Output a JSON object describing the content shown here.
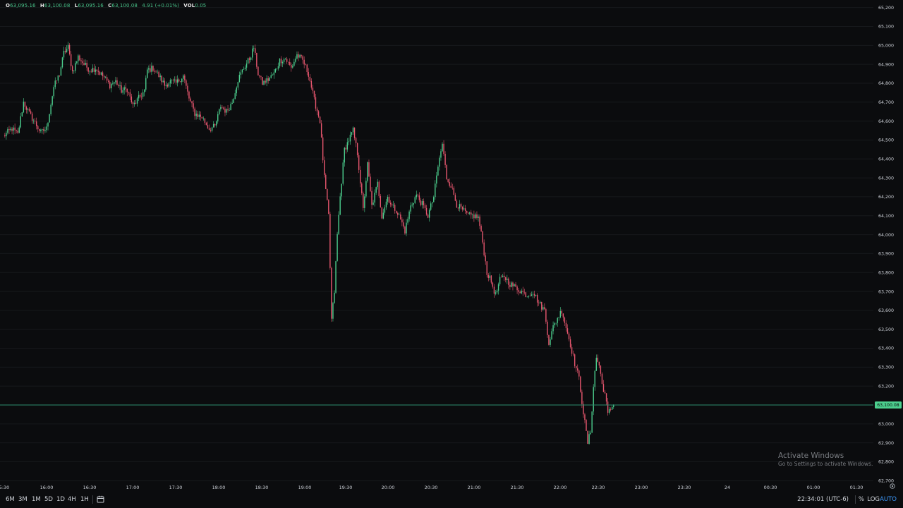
{
  "legend": {
    "o_key": "O",
    "o_val": "63,095.16",
    "h_key": "H",
    "h_val": "63,100.08",
    "l_key": "L",
    "l_val": "63,095.16",
    "c_key": "C",
    "c_val": "63,100.08",
    "change": "4.91 (+0.01%)",
    "vol_key": "VOL",
    "vol_val": "0.05"
  },
  "colors": {
    "up": "#26a69a",
    "up_bright": "#4ccf8e",
    "down": "#e9576f",
    "background": "#0b0c0e",
    "grid": "#17191c",
    "price_line": "#2e8b6d",
    "price_tag": "#4ccf8e"
  },
  "current_price_label": "63,100.08",
  "toolbar": {
    "timeframes": [
      "6M",
      "3M",
      "1M",
      "5D",
      "1D",
      "4H",
      "1H"
    ],
    "calendar_icon": "calendar-range-icon",
    "clock": "22:34:01 (UTC-6)",
    "percent": "%",
    "log": "LOG",
    "auto": "AUTO",
    "settings_icon": "gear-icon"
  },
  "watermark": {
    "line1": "Activate Windows",
    "line2": "Go to Settings to activate Windows."
  },
  "chart_data": {
    "type": "candlestick",
    "y_ticks": [
      "65,200",
      "65,100",
      "65,000",
      "64,900",
      "64,800",
      "64,700",
      "64,600",
      "64,500",
      "64,400",
      "64,300",
      "64,200",
      "64,100",
      "64,000",
      "63,900",
      "63,800",
      "63,700",
      "63,600",
      "63,500",
      "63,400",
      "63,300",
      "63,200",
      "63,100",
      "63,000",
      "62,900",
      "62,800",
      "62,700"
    ],
    "ylim": [
      62690,
      65210
    ],
    "x_ticks": [
      "5:30",
      "16:00",
      "16:30",
      "17:00",
      "17:30",
      "18:00",
      "18:30",
      "19:00",
      "19:30",
      "20:00",
      "20:30",
      "21:00",
      "21:30",
      "22:00",
      "22:30",
      "23:00",
      "23:30",
      "24",
      "00:30",
      "01:00",
      "01:30"
    ],
    "xlim": [
      "15:30",
      "01:48"
    ],
    "current_price": 63100.08,
    "candle_interval_minutes": 1,
    "price_path": [
      [
        "15:30",
        64520
      ],
      [
        "15:36",
        64560
      ],
      [
        "15:40",
        64530
      ],
      [
        "15:44",
        64700
      ],
      [
        "15:48",
        64640
      ],
      [
        "15:52",
        64590
      ],
      [
        "15:56",
        64540
      ],
      [
        "16:00",
        64560
      ],
      [
        "16:05",
        64780
      ],
      [
        "16:09",
        64850
      ],
      [
        "16:12",
        64960
      ],
      [
        "16:15",
        64990
      ],
      [
        "16:18",
        64860
      ],
      [
        "16:22",
        64940
      ],
      [
        "16:26",
        64900
      ],
      [
        "16:30",
        64870
      ],
      [
        "16:34",
        64880
      ],
      [
        "16:40",
        64830
      ],
      [
        "16:44",
        64790
      ],
      [
        "16:48",
        64810
      ],
      [
        "16:52",
        64760
      ],
      [
        "16:56",
        64770
      ],
      [
        "17:00",
        64680
      ],
      [
        "17:04",
        64720
      ],
      [
        "17:08",
        64760
      ],
      [
        "17:10",
        64870
      ],
      [
        "17:14",
        64880
      ],
      [
        "17:18",
        64840
      ],
      [
        "17:22",
        64790
      ],
      [
        "17:26",
        64810
      ],
      [
        "17:30",
        64800
      ],
      [
        "17:35",
        64840
      ],
      [
        "17:39",
        64720
      ],
      [
        "17:43",
        64640
      ],
      [
        "17:48",
        64620
      ],
      [
        "17:53",
        64560
      ],
      [
        "17:57",
        64570
      ],
      [
        "18:01",
        64680
      ],
      [
        "18:05",
        64650
      ],
      [
        "18:09",
        64700
      ],
      [
        "18:13",
        64820
      ],
      [
        "18:17",
        64880
      ],
      [
        "18:21",
        64930
      ],
      [
        "18:24",
        64990
      ],
      [
        "18:27",
        64850
      ],
      [
        "18:30",
        64800
      ],
      [
        "18:34",
        64820
      ],
      [
        "18:38",
        64850
      ],
      [
        "18:42",
        64920
      ],
      [
        "18:46",
        64930
      ],
      [
        "18:50",
        64880
      ],
      [
        "18:54",
        64950
      ],
      [
        "18:58",
        64920
      ],
      [
        "19:02",
        64850
      ],
      [
        "19:06",
        64710
      ],
      [
        "19:10",
        64600
      ],
      [
        "19:13",
        64300
      ],
      [
        "19:16",
        64100
      ],
      [
        "19:18",
        63550
      ],
      [
        "19:20",
        63700
      ],
      [
        "19:22",
        64000
      ],
      [
        "19:24",
        64200
      ],
      [
        "19:27",
        64450
      ],
      [
        "19:30",
        64500
      ],
      [
        "19:33",
        64550
      ],
      [
        "19:36",
        64430
      ],
      [
        "19:40",
        64130
      ],
      [
        "19:43",
        64370
      ],
      [
        "19:46",
        64150
      ],
      [
        "19:50",
        64270
      ],
      [
        "19:53",
        64100
      ],
      [
        "19:57",
        64200
      ],
      [
        "20:00",
        64150
      ],
      [
        "20:03",
        64130
      ],
      [
        "20:06",
        64080
      ],
      [
        "20:09",
        64020
      ],
      [
        "20:13",
        64150
      ],
      [
        "20:17",
        64210
      ],
      [
        "20:21",
        64160
      ],
      [
        "20:25",
        64100
      ],
      [
        "20:29",
        64200
      ],
      [
        "20:32",
        64360
      ],
      [
        "20:35",
        64480
      ],
      [
        "20:38",
        64300
      ],
      [
        "20:41",
        64260
      ],
      [
        "20:45",
        64160
      ],
      [
        "20:49",
        64130
      ],
      [
        "20:53",
        64100
      ],
      [
        "20:57",
        64100
      ],
      [
        "21:00",
        64090
      ],
      [
        "21:03",
        63960
      ],
      [
        "21:06",
        63800
      ],
      [
        "21:09",
        63750
      ],
      [
        "21:12",
        63680
      ],
      [
        "21:15",
        63760
      ],
      [
        "21:18",
        63780
      ],
      [
        "21:22",
        63740
      ],
      [
        "21:26",
        63720
      ],
      [
        "21:30",
        63700
      ],
      [
        "21:34",
        63680
      ],
      [
        "21:38",
        63700
      ],
      [
        "21:42",
        63640
      ],
      [
        "21:46",
        63600
      ],
      [
        "21:49",
        63430
      ],
      [
        "21:52",
        63510
      ],
      [
        "21:55",
        63560
      ],
      [
        "21:58",
        63600
      ],
      [
        "22:01",
        63510
      ],
      [
        "22:04",
        63420
      ],
      [
        "22:07",
        63320
      ],
      [
        "22:10",
        63240
      ],
      [
        "22:13",
        63060
      ],
      [
        "22:16",
        62900
      ],
      [
        "22:18",
        62960
      ],
      [
        "22:20",
        63200
      ],
      [
        "22:22",
        63350
      ],
      [
        "22:24",
        63310
      ],
      [
        "22:26",
        63210
      ],
      [
        "22:28",
        63160
      ],
      [
        "22:30",
        63050
      ],
      [
        "22:32",
        63080
      ],
      [
        "22:34",
        63100
      ]
    ]
  }
}
